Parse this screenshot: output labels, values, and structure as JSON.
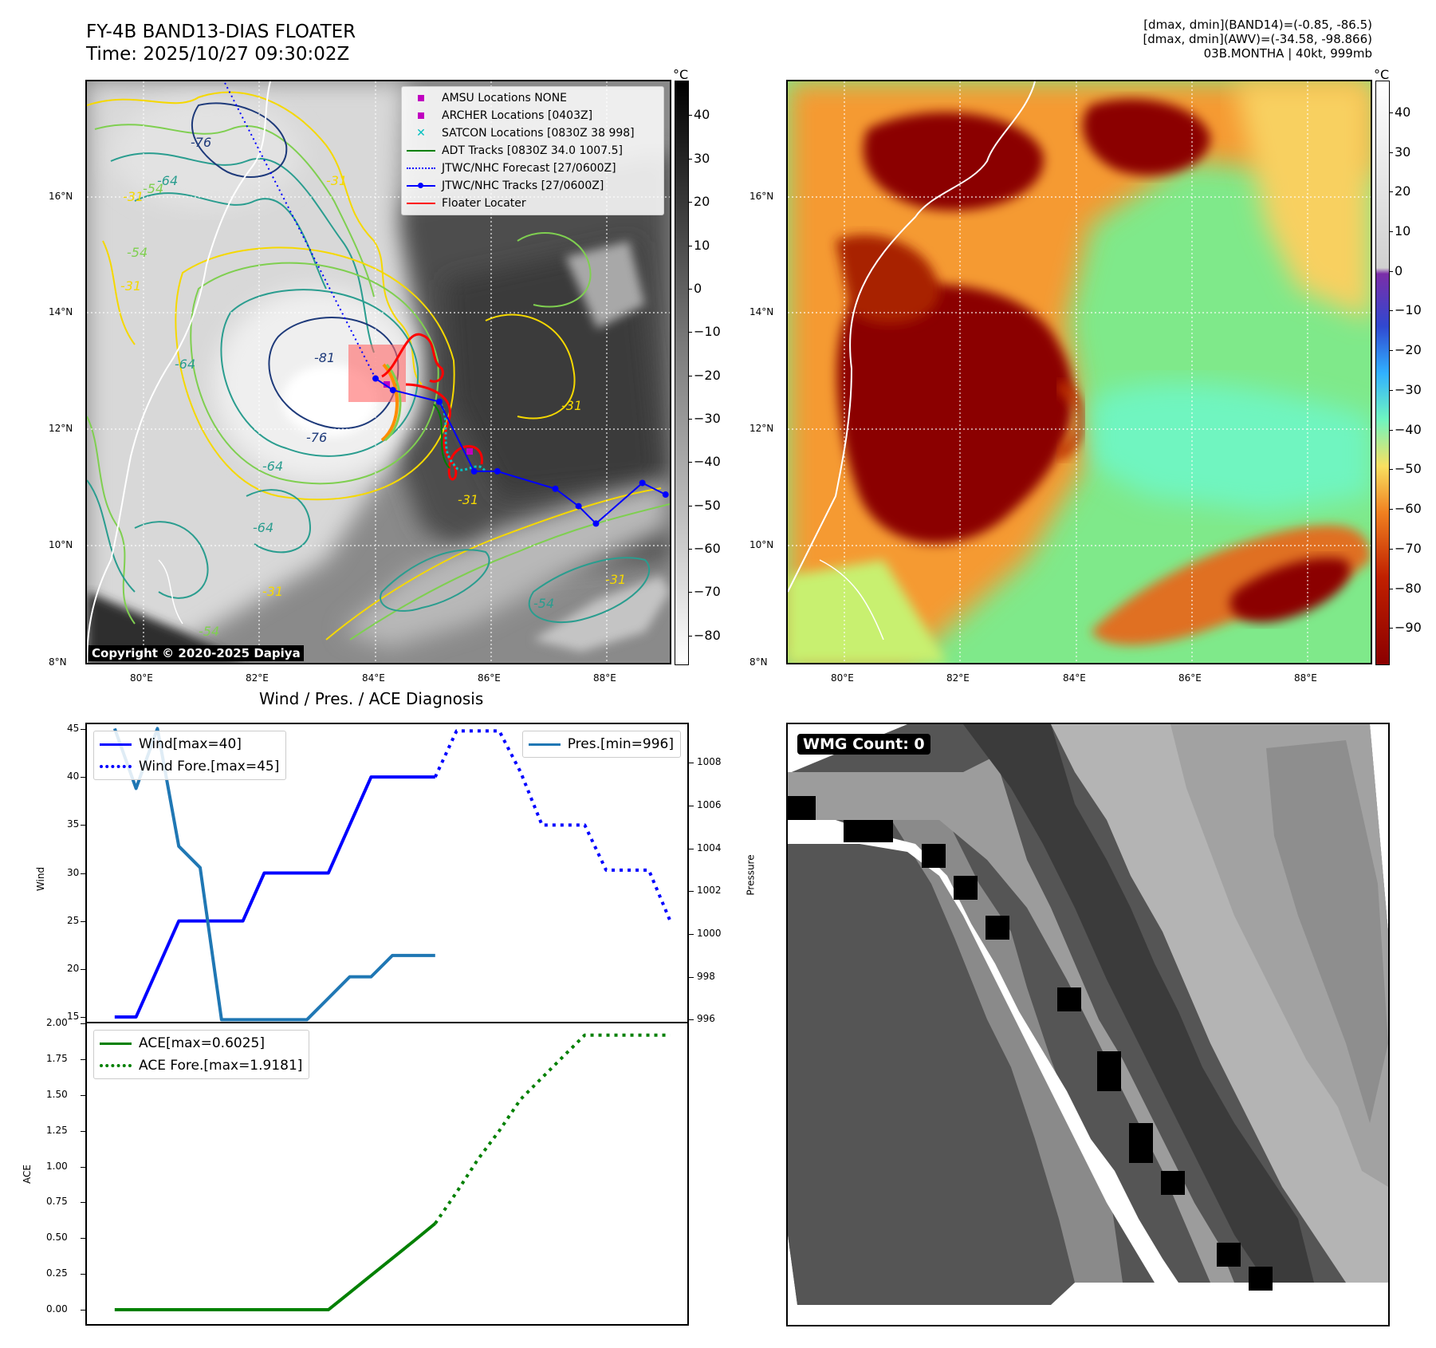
{
  "header": {
    "title_line1": "FY-4B BAND13-DIAS FLOATER",
    "title_line2": "Time: 2025/10/27 09:30:02Z",
    "meta_line1": "[dmax, dmin](BAND14)=(-0.85, -86.5)",
    "meta_line2": "[dmax, dmin](AWV)=(-34.58, -98.866)",
    "meta_line3": "03B.MONTHA | 40kt, 999mb"
  },
  "map": {
    "lon_ticks": [
      "80°E",
      "82°E",
      "84°E",
      "86°E",
      "88°E"
    ],
    "lat_ticks": [
      "16°N",
      "14°N",
      "12°N",
      "10°N",
      "8°N"
    ],
    "contour_labels": [
      "-76",
      "-64",
      "-54",
      "-31",
      "-81",
      "-76",
      "-64",
      "-31",
      "-54",
      "-31",
      "-31",
      "-64",
      "-54",
      "-31",
      "-31",
      "-31",
      "-54",
      "-64"
    ],
    "copyright": "Copyright © 2020-2025 Dapiya",
    "legend": [
      {
        "label": "AMSU Locations NONE",
        "color": "#c000c0",
        "marker": "square"
      },
      {
        "label": "ARCHER Locations [0403Z]",
        "color": "#c000c0",
        "marker": "square"
      },
      {
        "label": "SATCON Locations [0830Z 38 998]",
        "color": "#00c0c0",
        "marker": "x"
      },
      {
        "label": "ADT Tracks [0830Z 34.0 1007.5]",
        "color": "#008000",
        "marker": "line"
      },
      {
        "label": "JTWC/NHC Forecast [27/0600Z]",
        "color": "#0000ff",
        "marker": "dotted"
      },
      {
        "label": "JTWC/NHC Tracks [27/0600Z]",
        "color": "#0000ff",
        "marker": "line-dot"
      },
      {
        "label": "Floater Locater",
        "color": "#ff0000",
        "marker": "line"
      }
    ],
    "jtwc_track": {
      "lon": [
        89,
        88.6,
        87.8,
        87.5,
        87.1,
        86.1,
        85.7,
        85.1,
        84.3,
        84.0
      ],
      "lat": [
        10.9,
        11.1,
        10.4,
        10.7,
        11.0,
        11.3,
        11.3,
        12.5,
        12.7,
        12.9
      ]
    },
    "jtwc_forecast": {
      "lon": [
        84.0,
        81.4
      ],
      "lat": [
        12.9,
        18.0
      ]
    }
  },
  "colorbar_gray": {
    "unit": "°C",
    "ticks": [
      "40",
      "30",
      "20",
      "10",
      "0",
      "−10",
      "−20",
      "−30",
      "−40",
      "−50",
      "−60",
      "−70",
      "−80"
    ],
    "range": [
      -86.5,
      48
    ]
  },
  "colorbar_color": {
    "unit": "°C",
    "ticks": [
      "40",
      "30",
      "20",
      "10",
      "0",
      "−10",
      "−20",
      "−30",
      "−40",
      "−50",
      "−60",
      "−70",
      "−80",
      "−90"
    ],
    "range": [
      -99,
      48
    ]
  },
  "colors": {
    "jtwc": "#0000ff",
    "floater": "#ff0000",
    "adt": "#008000",
    "satcon": "#00c0c0",
    "archer": "#c000c0",
    "wind": "#0000ff",
    "pres": "#1f77b4",
    "ace": "#008000"
  },
  "diagnosis": {
    "title": "Wind / Pres. / ACE Diagnosis",
    "wind_ylabel": "Wind",
    "pres_ylabel": "Pressure",
    "ace_ylabel": "ACE",
    "wind_ticks": [
      "45",
      "40",
      "35",
      "30",
      "25",
      "20",
      "15"
    ],
    "pres_ticks": [
      "1008",
      "1006",
      "1004",
      "1002",
      "1000",
      "998",
      "996"
    ],
    "ace_ticks": [
      "2.00",
      "1.75",
      "1.50",
      "1.25",
      "1.00",
      "0.75",
      "0.50",
      "0.25",
      "0.00"
    ],
    "legend_wind": [
      "Wind[max=40]",
      "Wind Fore.[max=45]"
    ],
    "legend_pres": [
      "Pres.[min=996]"
    ],
    "legend_ace": [
      "ACE[max=0.6025]",
      "ACE Fore.[max=1.9181]"
    ]
  },
  "chart_data": [
    {
      "type": "line",
      "title": "Wind / Pres. / ACE Diagnosis",
      "ylabel": "Wind",
      "ylim": [
        14.5,
        45.5
      ],
      "xlim": [
        -1.3,
        26.8
      ],
      "series": [
        {
          "name": "Wind[max=40]",
          "style": "solid",
          "x": [
            0,
            1,
            2,
            3,
            4,
            5,
            6,
            7,
            8,
            9,
            10,
            11,
            12,
            13,
            14,
            15
          ],
          "y": [
            15,
            15,
            20,
            25,
            25,
            25,
            25,
            30,
            30,
            30,
            30,
            35,
            40,
            40,
            40,
            40
          ]
        },
        {
          "name": "Wind Fore.[max=45]",
          "style": "dotted",
          "x": [
            15,
            16,
            17,
            18,
            19,
            20,
            21,
            22,
            23,
            24,
            25,
            26
          ],
          "y": [
            40,
            44.8,
            44.8,
            44.8,
            40.5,
            35,
            35,
            35,
            30.3,
            30.3,
            30.3,
            25
          ]
        }
      ]
    },
    {
      "type": "line",
      "ylabel": "Pressure",
      "ylim": [
        995.9,
        1009.8
      ],
      "xlim": [
        -1.3,
        26.8
      ],
      "series": [
        {
          "name": "Pres.[min=996]",
          "style": "solid",
          "x": [
            0,
            1,
            2,
            3,
            4,
            5,
            6,
            7,
            8,
            9,
            10,
            11,
            12,
            13,
            14,
            15
          ],
          "y": [
            1009.6,
            1006.8,
            1009.6,
            1004.1,
            1003.1,
            996,
            996,
            996,
            996,
            996,
            997,
            998,
            998,
            999,
            999,
            999
          ]
        }
      ]
    },
    {
      "type": "line",
      "ylabel": "ACE",
      "ylim": [
        -0.1,
        2.0
      ],
      "xlim": [
        -1.3,
        26.8
      ],
      "series": [
        {
          "name": "ACE[max=0.6025]",
          "style": "solid",
          "x": [
            0,
            1,
            2,
            3,
            4,
            5,
            6,
            7,
            8,
            9,
            10,
            11,
            12,
            13,
            14,
            15
          ],
          "y": [
            0,
            0,
            0,
            0,
            0,
            0,
            0,
            0,
            0,
            0,
            0,
            0.12,
            0.24,
            0.36,
            0.48,
            0.6025
          ]
        },
        {
          "name": "ACE Fore.[max=1.9181]",
          "style": "dotted",
          "x": [
            15,
            16,
            17,
            18,
            19,
            20,
            21,
            22,
            23,
            24,
            25,
            26
          ],
          "y": [
            0.6025,
            0.82,
            1.05,
            1.25,
            1.47,
            1.62,
            1.77,
            1.9181,
            1.9181,
            1.9181,
            1.9181,
            1.9181
          ]
        }
      ]
    }
  ],
  "wmg": {
    "label": "WMG Count: 0"
  }
}
